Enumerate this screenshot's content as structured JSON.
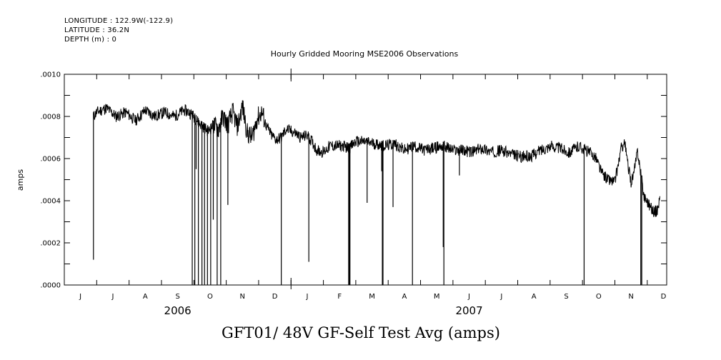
{
  "header": {
    "longitude": "LONGITUDE : 122.9W(-122.9)",
    "latitude": "LATITUDE : 36.2N",
    "depth": "DEPTH (m) : 0"
  },
  "plot_title": "Hourly Gridded Mooring MSE2006 Observations",
  "figure_title": "GFT01/ 48V GF-Self Test Avg (amps)",
  "chart_data": {
    "type": "line",
    "title": "Hourly Gridded Mooring MSE2006 Observations",
    "xlabel": "",
    "ylabel": "amps",
    "ylim": [
      0,
      0.001
    ],
    "yticks": [
      ".0000",
      ".0002",
      ".0004",
      ".0006",
      ".0008",
      ".0010"
    ],
    "ytick_values": [
      0,
      0.0002,
      0.0004,
      0.0006,
      0.0008,
      0.001
    ],
    "xlim_months": [
      0,
      18.6
    ],
    "x_unit": "months since 2006-06-01",
    "month_labels": [
      "J",
      "J",
      "A",
      "S",
      "O",
      "N",
      "D",
      "J",
      "F",
      "M",
      "A",
      "M",
      "J",
      "J",
      "A",
      "S",
      "O",
      "N",
      "D"
    ],
    "year_labels": [
      {
        "label": "2006",
        "at": 3.5
      },
      {
        "label": "2007",
        "at": 12.5
      }
    ],
    "series": [
      {
        "name": "48V GF-Self Test Avg",
        "x": [
          0.9,
          1.0,
          1.3,
          1.6,
          1.9,
          2.2,
          2.5,
          2.8,
          3.1,
          3.4,
          3.7,
          3.85,
          4.0,
          4.15,
          4.3,
          4.45,
          4.6,
          4.75,
          4.9,
          5.05,
          5.2,
          5.35,
          5.5,
          5.65,
          5.8,
          5.95,
          6.1,
          6.25,
          6.4,
          6.55,
          6.7,
          6.85,
          7.0,
          7.15,
          7.3,
          7.5,
          7.65,
          7.8,
          8.0,
          8.2,
          8.4,
          8.6,
          8.8,
          9.0,
          9.3,
          9.6,
          9.9,
          10.2,
          10.5,
          10.8,
          11.1,
          11.4,
          11.7,
          12.0,
          12.3,
          12.6,
          12.9,
          13.2,
          13.5,
          13.8,
          14.1,
          14.4,
          14.7,
          15.0,
          15.3,
          15.6,
          15.9,
          16.2,
          16.4,
          16.6,
          16.8,
          17.0,
          17.1,
          17.2,
          17.3,
          17.4,
          17.5,
          17.6,
          17.7,
          17.8,
          17.9,
          18.0,
          18.1,
          18.2,
          18.3,
          18.4
        ],
        "values": [
          0.0008,
          0.00082,
          0.00084,
          0.0008,
          0.00082,
          0.00078,
          0.00083,
          0.0008,
          0.00082,
          0.0008,
          0.00083,
          0.00082,
          0.0008,
          0.00077,
          0.00075,
          0.00073,
          0.00076,
          0.00074,
          0.0008,
          0.00076,
          0.00082,
          0.00075,
          0.00085,
          0.00072,
          0.0007,
          0.00079,
          0.00082,
          0.00075,
          0.00071,
          0.00069,
          0.0007,
          0.00074,
          0.00073,
          0.00072,
          0.0007,
          0.00071,
          0.00068,
          0.00064,
          0.00063,
          0.00066,
          0.00066,
          0.00066,
          0.00065,
          0.00068,
          0.00068,
          0.00067,
          0.00066,
          0.00067,
          0.00064,
          0.00066,
          0.00064,
          0.00065,
          0.00066,
          0.00064,
          0.00064,
          0.00063,
          0.00065,
          0.00063,
          0.00064,
          0.00062,
          0.00061,
          0.00061,
          0.00064,
          0.00066,
          0.00065,
          0.00063,
          0.00066,
          0.00063,
          0.00061,
          0.00053,
          0.0005,
          0.00049,
          0.00057,
          0.00065,
          0.00068,
          0.00057,
          0.00049,
          0.00054,
          0.00064,
          0.00053,
          0.00042,
          0.0004,
          0.00037,
          0.00035,
          0.00035,
          0.00042
        ]
      }
    ],
    "dropouts": [
      {
        "x": 0.9,
        "to": 0.00012
      },
      {
        "x": 3.95,
        "to": 0.0
      },
      {
        "x": 4.03,
        "to": 0.0
      },
      {
        "x": 4.07,
        "to": 0.00055
      },
      {
        "x": 4.14,
        "to": 0.0
      },
      {
        "x": 4.25,
        "to": 0.0
      },
      {
        "x": 4.33,
        "to": 0.0
      },
      {
        "x": 4.42,
        "to": 0.0
      },
      {
        "x": 4.52,
        "to": 0.0
      },
      {
        "x": 4.6,
        "to": 0.00031
      },
      {
        "x": 4.72,
        "to": 0.0
      },
      {
        "x": 4.83,
        "to": 0.0
      },
      {
        "x": 5.05,
        "to": 0.00038
      },
      {
        "x": 6.7,
        "to": 0.0
      },
      {
        "x": 7.55,
        "to": 0.00011
      },
      {
        "x": 8.78,
        "to": 0.0
      },
      {
        "x": 8.8,
        "to": 0.0
      },
      {
        "x": 8.82,
        "to": 0.0
      },
      {
        "x": 9.35,
        "to": 0.00039
      },
      {
        "x": 9.8,
        "to": 0.00054
      },
      {
        "x": 9.82,
        "to": 0.0
      },
      {
        "x": 9.84,
        "to": 0.0
      },
      {
        "x": 10.15,
        "to": 0.00037
      },
      {
        "x": 10.75,
        "to": 0.0
      },
      {
        "x": 11.7,
        "to": 0.00018
      },
      {
        "x": 11.72,
        "to": 0.0
      },
      {
        "x": 12.2,
        "to": 0.00052
      },
      {
        "x": 16.05,
        "to": 0.0
      },
      {
        "x": 17.8,
        "to": 0.0
      },
      {
        "x": 17.83,
        "to": 0.0
      }
    ]
  }
}
